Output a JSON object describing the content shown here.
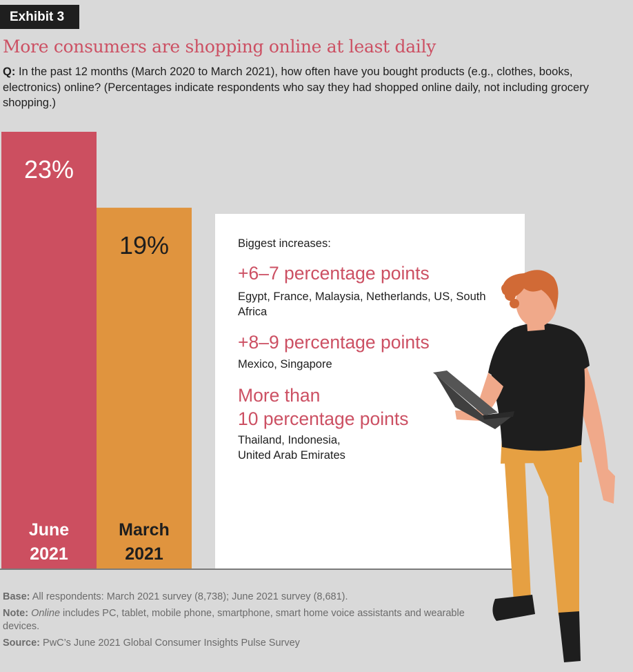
{
  "exhibit_label": "Exhibit 3",
  "title": "More consumers are shopping online at least daily",
  "question": {
    "prefix": "Q:",
    "text": "In the past 12 months (March 2020 to March 2021), how often have you bought products (e.g., clothes, books, electronics) online? (Percentages indicate respondents who say they had shopped online daily, not including grocery shopping.)"
  },
  "chart_data": {
    "type": "bar",
    "categories": [
      "June 2021",
      "March 2021"
    ],
    "category_lines": [
      [
        "June",
        "2021"
      ],
      [
        "March",
        "2021"
      ]
    ],
    "values": [
      23,
      19
    ],
    "value_labels": [
      "23%",
      "19%"
    ],
    "unit": "%",
    "colors": [
      "#cc4f60",
      "#e0943e"
    ],
    "label_colors": [
      "#ffffff",
      "#1e1e1e"
    ],
    "ylim": [
      0,
      23
    ],
    "title": "",
    "xlabel": "",
    "ylabel": ""
  },
  "panel": {
    "heading": "Biggest increases:",
    "groups": [
      {
        "label": "+6–7 percentage points",
        "countries": "Egypt, France, Malaysia, Netherlands, US, South Africa"
      },
      {
        "label": "+8–9 percentage points",
        "countries": "Mexico, Singapore"
      },
      {
        "label_lines": [
          "More than",
          "10 percentage points"
        ],
        "countries_lines": [
          "Thailand, Indonesia,",
          "United Arab Emirates"
        ]
      }
    ]
  },
  "footer": {
    "base_label": "Base:",
    "base_text": "All respondents: March 2021 survey (8,738); June 2021 survey (8,681).",
    "note_label": "Note:",
    "note_italic": "Online",
    "note_text": "includes PC, tablet, mobile phone, smartphone, smart home voice assistants and wearable devices.",
    "source_label": "Source:",
    "source_text": "PwC’s June 2021 Global Consumer Insights Pulse Survey"
  },
  "colors": {
    "background": "#d9d9d9",
    "accent": "#cc5063",
    "bar_june": "#cc4f60",
    "bar_march": "#e0943e"
  }
}
